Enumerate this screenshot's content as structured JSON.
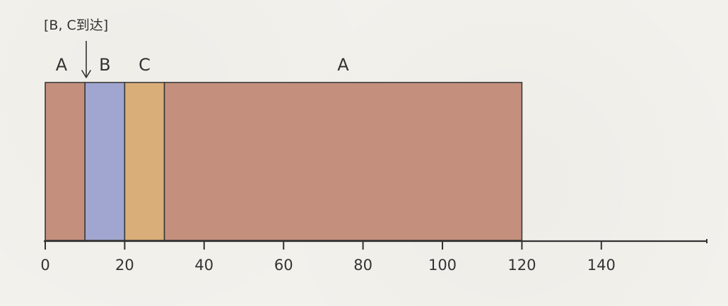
{
  "annotation": "[B, C到达]",
  "segments": [
    {
      "label": "A",
      "start": 0,
      "end": 10,
      "color": "#c4907d",
      "show_label": true
    },
    {
      "label": "B",
      "start": 10,
      "end": 20,
      "color": "#a0a6cf",
      "show_label": true
    },
    {
      "label": "C",
      "start": 20,
      "end": 30,
      "color": "#d9ae78",
      "show_label": true
    },
    {
      "label": "A",
      "start": 30,
      "end": 120,
      "color": "#c4907d",
      "show_label": true
    }
  ],
  "axis": {
    "ticks": [
      0,
      20,
      40,
      60,
      80,
      100,
      120,
      140
    ],
    "min": 0,
    "max": 167
  }
}
